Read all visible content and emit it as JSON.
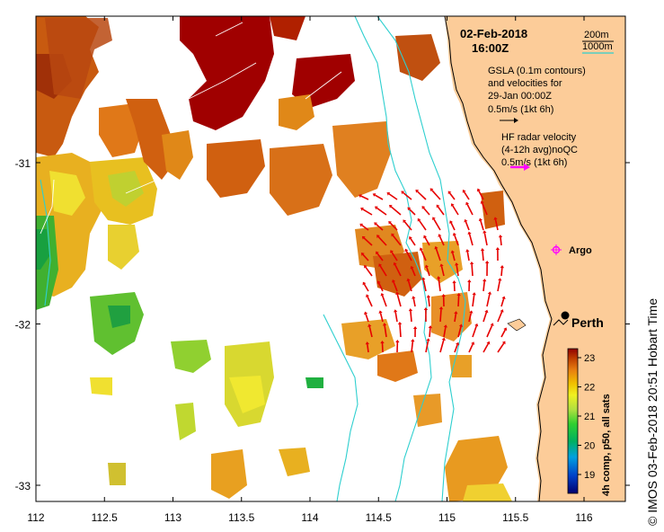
{
  "header": {
    "date": "02-Feb-2018",
    "time": "16:00Z"
  },
  "depth_legend": {
    "contour_1": "200m",
    "contour_2": "1000m"
  },
  "gsla_legend": {
    "line1": "GSLA (0.1m contours)",
    "line2": "and velocities for",
    "line3": "29-Jan 00:00Z",
    "scale": "0.5m/s (1kt 6h)"
  },
  "hf_legend": {
    "line1": "HF radar velocity",
    "line2": "(4-12h avg)noQC",
    "scale": "0.5m/s (1kt 6h)"
  },
  "places": {
    "argo": "Argo",
    "perth": "Perth"
  },
  "axes": {
    "x_ticks": [
      "112",
      "112.5",
      "113",
      "113.5",
      "114",
      "114.5",
      "115",
      "115.5",
      "116"
    ],
    "y_ticks": [
      "-31",
      "-32",
      "-33"
    ]
  },
  "colorbar": {
    "ticks": [
      "23",
      "22",
      "21",
      "20",
      "19"
    ],
    "label": "4h comp, p50, all sats"
  },
  "side_info": "© IMOS 03-Feb-2018 20:51 Hobart Time",
  "colors": {
    "land": "#fccc99",
    "depth_200m": "#000000",
    "depth_1000m": "#2ecfcf",
    "hf_arrows": "#e60000",
    "hf_legend_arrow": "#ff00ff",
    "argo": "#ff00ff",
    "sst_hot": "#a00000"
  }
}
